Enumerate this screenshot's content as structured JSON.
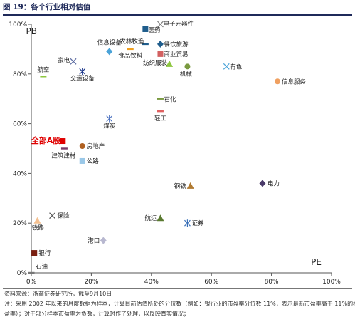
{
  "figure": {
    "title": "图 19：各个行业相对估值",
    "source": "资料来源：浙商证券研究所，截至9月10日",
    "note_line1": "注：采用 2002 年以来的月度数据为样本，计算目前估值所处的分位数（例如：银行业的市盈率分位数 11%，表示最新市盈率高于 11%的样本市",
    "note_line2": "盈率）；对于部分样本市盈率为负数，计算时作了处理，以反映真实情况；"
  },
  "chart_data": {
    "type": "scatter",
    "title": "",
    "xlabel": "PE",
    "ylabel": "PB",
    "xlim": [
      0,
      100
    ],
    "ylim": [
      0,
      100
    ],
    "x_ticks": [
      "0%",
      "20%",
      "40%",
      "60%",
      "80%",
      "100%"
    ],
    "y_ticks": [
      "0%",
      "20%",
      "40%",
      "60%",
      "80%",
      "100%"
    ],
    "grid": false,
    "legend": "none",
    "points": [
      {
        "name": "电子元器件",
        "x": 43,
        "y": 100,
        "marker": "x",
        "color": "#7a7a7a"
      },
      {
        "name": "医药",
        "x": 38,
        "y": 98,
        "marker": "square",
        "color": "#1f5d8c"
      },
      {
        "name": "农林牧渔",
        "x": 38,
        "y": 92,
        "marker": "dash",
        "color": "#1f5d8c"
      },
      {
        "name": "餐饮旅游",
        "x": 43,
        "y": 92,
        "marker": "diamond",
        "color": "#1f5d8c"
      },
      {
        "name": "信息设备",
        "x": 26,
        "y": 89,
        "marker": "diamond",
        "color": "#4aa3d8"
      },
      {
        "name": "食品饮料",
        "x": 33,
        "y": 90,
        "marker": "dash",
        "color": "#f0a020"
      },
      {
        "name": "商业贸易",
        "x": 43,
        "y": 88,
        "marker": "square",
        "color": "#d26060"
      },
      {
        "name": "纺织服装",
        "x": 46,
        "y": 84,
        "marker": "triangle",
        "color": "#8dc63f"
      },
      {
        "name": "机械",
        "x": 52,
        "y": 83,
        "marker": "circle",
        "color": "#7a9a40"
      },
      {
        "name": "有色",
        "x": 65,
        "y": 83,
        "marker": "x",
        "color": "#4aa3d8"
      },
      {
        "name": "家电",
        "x": 14,
        "y": 85,
        "marker": "x",
        "color": "#5a6aa0"
      },
      {
        "name": "航空",
        "x": 4,
        "y": 79,
        "marker": "dash",
        "color": "#8dc63f"
      },
      {
        "name": "交运设备",
        "x": 17,
        "y": 81,
        "marker": "star",
        "color": "#1f3a8c"
      },
      {
        "name": "信息服务",
        "x": 82,
        "y": 77,
        "marker": "circle",
        "color": "#f0a060"
      },
      {
        "name": "石化",
        "x": 43,
        "y": 70,
        "marker": "dash",
        "color": "#7a9a40"
      },
      {
        "name": "轻工",
        "x": 43,
        "y": 65,
        "marker": "dash",
        "color": "#e06060"
      },
      {
        "name": "煤炭",
        "x": 26,
        "y": 62,
        "marker": "star",
        "color": "#4a70c0"
      },
      {
        "name": "全部A股",
        "x": 10.5,
        "y": 53,
        "marker": "square",
        "color": "#e00000"
      },
      {
        "name": "房地产",
        "x": 17,
        "y": 51,
        "marker": "circle",
        "color": "#b06020"
      },
      {
        "name": "建筑建材",
        "x": 11,
        "y": 50,
        "marker": "dash",
        "color": "#7a3a6a"
      },
      {
        "name": "公路",
        "x": 17,
        "y": 45,
        "marker": "square",
        "color": "#9ac8e8"
      },
      {
        "name": "电力",
        "x": 77,
        "y": 36,
        "marker": "diamond",
        "color": "#4a3a6a"
      },
      {
        "name": "钢铁",
        "x": 53,
        "y": 35,
        "marker": "triangle",
        "color": "#b07a30"
      },
      {
        "name": "保险",
        "x": 7,
        "y": 23,
        "marker": "x",
        "color": "#555555"
      },
      {
        "name": "铁路",
        "x": 2,
        "y": 21,
        "marker": "triangle",
        "color": "#f4c090"
      },
      {
        "name": "航运",
        "x": 43,
        "y": 22,
        "marker": "triangle",
        "color": "#5a7a30"
      },
      {
        "name": "证券",
        "x": 52,
        "y": 20,
        "marker": "star",
        "color": "#3a70b8"
      },
      {
        "name": "港口",
        "x": 24,
        "y": 13,
        "marker": "diamond",
        "color": "#b8b8d0"
      },
      {
        "name": "银行",
        "x": 1,
        "y": 8,
        "marker": "square",
        "color": "#7a1f10"
      },
      {
        "name": "石油",
        "x": 0,
        "y": 0,
        "marker": "dash",
        "color": "#777777"
      }
    ]
  }
}
